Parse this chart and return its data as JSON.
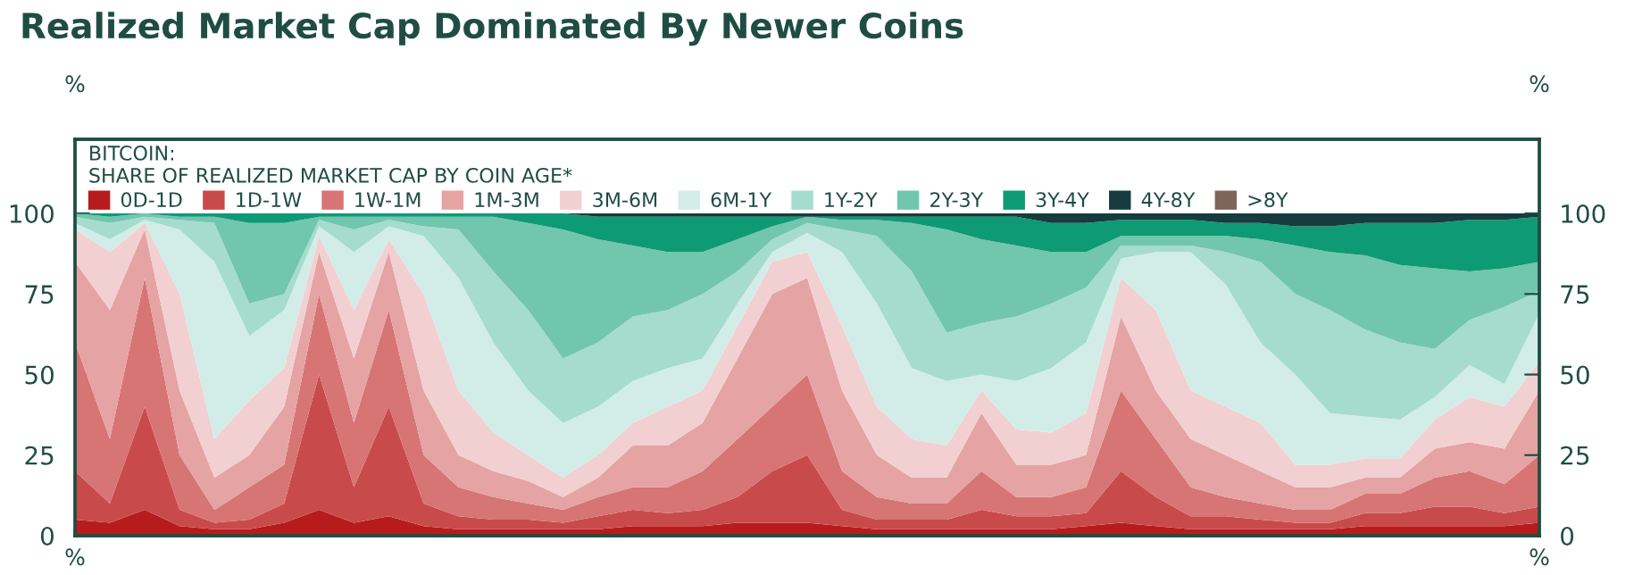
{
  "chart_data": {
    "type": "area",
    "stacked": true,
    "title": "Realized Market Cap Dominated By Newer Coins",
    "legend_title": "BITCOIN:\nSHARE OF REALIZED MARKET CAP BY COIN AGE*",
    "ylabel": "%",
    "y2label": "%",
    "annotations": [
      "%",
      "%"
    ],
    "categories": [
      null,
      null,
      null,
      null,
      null,
      null,
      null,
      null,
      null,
      null,
      null,
      null,
      null,
      null,
      null,
      null,
      null,
      null,
      null,
      null,
      null,
      null,
      null,
      null,
      null,
      null,
      null,
      null,
      null,
      null,
      null,
      null,
      null,
      null,
      null,
      null,
      null,
      null,
      null,
      null,
      null,
      null,
      null
    ],
    "ylim": [
      0,
      123
    ],
    "yticks": [
      0,
      25,
      50,
      75,
      100
    ],
    "y2lim": [
      0,
      123
    ],
    "y2ticks": [
      0,
      25,
      50,
      75,
      100
    ],
    "grid": false,
    "legend": "top left",
    "series": [
      {
        "name": "0D-1D",
        "color": "#b71c1c",
        "values": [
          5,
          4,
          8,
          3,
          2,
          2,
          4,
          8,
          4,
          6,
          3,
          2,
          2,
          2,
          2,
          2,
          3,
          3,
          3,
          4,
          4,
          4,
          3,
          2,
          2,
          2,
          2,
          2,
          2,
          3,
          4,
          3,
          2,
          2,
          2,
          2,
          2,
          3,
          3,
          3,
          3,
          3,
          4
        ]
      },
      {
        "name": "1D-1W",
        "color": "#c94a4a",
        "values": [
          15,
          6,
          32,
          5,
          2,
          3,
          6,
          42,
          11,
          34,
          7,
          4,
          3,
          3,
          2,
          4,
          5,
          4,
          5,
          8,
          16,
          21,
          5,
          3,
          3,
          3,
          6,
          4,
          4,
          4,
          16,
          9,
          4,
          4,
          3,
          2,
          2,
          4,
          4,
          6,
          6,
          4,
          5
        ]
      },
      {
        "name": "1W-1M",
        "color": "#d77474",
        "values": [
          40,
          20,
          40,
          17,
          4,
          10,
          12,
          25,
          20,
          30,
          15,
          9,
          7,
          5,
          4,
          6,
          7,
          8,
          12,
          18,
          20,
          25,
          12,
          7,
          5,
          5,
          12,
          6,
          6,
          8,
          25,
          18,
          9,
          6,
          5,
          4,
          4,
          6,
          6,
          9,
          11,
          9,
          16
        ]
      },
      {
        "name": "1M-3M",
        "color": "#e5a3a3",
        "values": [
          25,
          40,
          15,
          20,
          10,
          10,
          18,
          13,
          20,
          18,
          20,
          10,
          8,
          7,
          4,
          6,
          13,
          13,
          15,
          25,
          35,
          30,
          25,
          13,
          8,
          8,
          18,
          10,
          10,
          10,
          23,
          15,
          15,
          13,
          10,
          7,
          7,
          5,
          5,
          9,
          9,
          11,
          20
        ]
      },
      {
        "name": "3M-6M",
        "color": "#f2d0d2",
        "values": [
          10,
          18,
          2,
          30,
          12,
          17,
          12,
          5,
          15,
          4,
          30,
          20,
          12,
          8,
          6,
          7,
          7,
          12,
          10,
          10,
          10,
          8,
          20,
          15,
          12,
          10,
          7,
          11,
          10,
          13,
          12,
          25,
          15,
          15,
          15,
          7,
          7,
          6,
          6,
          9,
          14,
          13,
          9
        ]
      },
      {
        "name": "6M-1Y",
        "color": "#d2ede7",
        "values": [
          2,
          4,
          1,
          20,
          55,
          20,
          18,
          3,
          18,
          4,
          18,
          35,
          28,
          20,
          17,
          15,
          13,
          12,
          10,
          7,
          3,
          6,
          23,
          32,
          22,
          20,
          5,
          15,
          20,
          22,
          6,
          18,
          43,
          38,
          25,
          28,
          16,
          13,
          12,
          7,
          10,
          7,
          15
        ]
      },
      {
        "name": "1Y-2Y",
        "color": "#a6dccd",
        "values": [
          2,
          5,
          1,
          3,
          12,
          10,
          5,
          2,
          7,
          2,
          3,
          15,
          22,
          25,
          20,
          20,
          20,
          18,
          20,
          10,
          4,
          3,
          7,
          21,
          30,
          15,
          16,
          20,
          20,
          17,
          4,
          2,
          2,
          10,
          25,
          25,
          32,
          27,
          24,
          15,
          14,
          24,
          7
        ]
      },
      {
        "name": "2Y-3Y",
        "color": "#72c6ad",
        "values": [
          1,
          2,
          1,
          1,
          2,
          25,
          22,
          1,
          4,
          1,
          3,
          4,
          17,
          27,
          40,
          32,
          22,
          18,
          13,
          10,
          4,
          2,
          3,
          5,
          15,
          32,
          26,
          22,
          16,
          11,
          3,
          3,
          3,
          5,
          7,
          15,
          18,
          23,
          24,
          25,
          15,
          12,
          9
        ]
      },
      {
        "name": "3Y-4Y",
        "color": "#0e9a74",
        "values": [
          0,
          1,
          0,
          1,
          1,
          3,
          3,
          1,
          1,
          1,
          1,
          1,
          1,
          3,
          5,
          7,
          9,
          11,
          11,
          7,
          3,
          0,
          1,
          1,
          2,
          4,
          7,
          9,
          9,
          9,
          5,
          5,
          5,
          4,
          5,
          6,
          8,
          10,
          13,
          14,
          16,
          15,
          14
        ]
      },
      {
        "name": "4Y-8Y",
        "color": "#173c3f",
        "values": [
          0,
          0,
          0,
          0,
          0,
          0,
          0,
          0,
          0,
          0,
          0,
          0,
          0,
          0,
          0,
          1,
          1,
          1,
          1,
          1,
          1,
          1,
          1,
          1,
          1,
          1,
          1,
          1,
          3,
          3,
          2,
          2,
          2,
          3,
          3,
          4,
          4,
          3,
          3,
          3,
          2,
          2,
          1
        ]
      },
      {
        "name": ">8Y",
        "color": "#7d6659",
        "values": [
          null,
          null,
          null,
          null,
          null,
          null,
          null,
          null,
          null,
          null,
          null,
          null,
          null,
          null,
          null,
          null,
          null,
          null,
          null,
          null,
          null,
          null,
          null,
          null,
          null,
          null,
          null,
          null,
          null,
          null,
          null,
          null,
          null,
          null,
          null,
          null,
          null,
          null,
          null,
          null,
          null,
          null,
          null
        ]
      }
    ]
  }
}
